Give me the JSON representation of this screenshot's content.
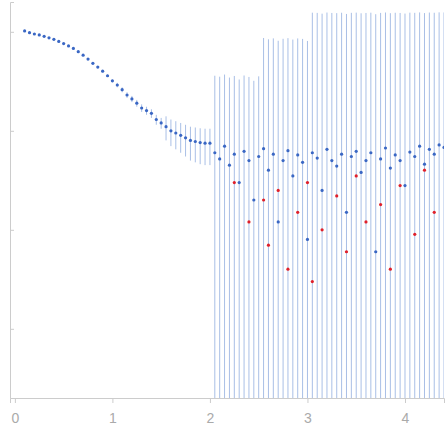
{
  "chart_data": {
    "type": "scatter",
    "log": "y",
    "tick_labels": "x",
    "grid": false,
    "xlim": [
      -0.05,
      4.4
    ],
    "xticks": [
      0,
      1,
      2,
      3,
      4
    ],
    "ylim": [
      0.0002,
      2
    ],
    "yticks": [
      0.001,
      0.01,
      0.1,
      1
    ],
    "series": [
      {
        "color": "#3a67c4",
        "marker": "circle",
        "x": [
          0.1,
          0.15,
          0.2,
          0.25,
          0.3,
          0.35,
          0.4,
          0.45,
          0.5,
          0.55,
          0.6,
          0.65,
          0.7,
          0.75,
          0.8,
          0.85,
          0.9,
          0.95,
          1.0,
          1.05,
          1.1,
          1.15,
          1.2,
          1.25,
          1.3,
          1.35,
          1.4,
          1.45,
          1.5,
          1.55,
          1.6,
          1.65,
          1.7,
          1.75,
          1.8,
          1.85,
          1.9,
          1.95,
          2.0,
          2.05,
          2.1,
          2.15,
          2.2,
          2.25,
          2.3,
          2.35,
          2.4,
          2.45,
          2.5,
          2.55,
          2.6,
          2.65,
          2.7,
          2.75,
          2.8,
          2.85,
          2.9,
          2.95,
          3.0,
          3.05,
          3.1,
          3.15,
          3.2,
          3.25,
          3.3,
          3.35,
          3.4,
          3.45,
          3.5,
          3.55,
          3.6,
          3.65,
          3.7,
          3.75,
          3.8,
          3.85,
          3.9,
          3.95,
          4.0,
          4.05,
          4.1,
          4.15,
          4.2,
          4.25,
          4.3,
          4.35,
          4.4
        ],
        "values": [
          1.02,
          0.98,
          0.95,
          0.93,
          0.9,
          0.87,
          0.84,
          0.8,
          0.76,
          0.72,
          0.68,
          0.63,
          0.58,
          0.53,
          0.48,
          0.44,
          0.4,
          0.36,
          0.32,
          0.29,
          0.26,
          0.23,
          0.21,
          0.19,
          0.17,
          0.16,
          0.15,
          0.13,
          0.12,
          0.11,
          0.1,
          0.095,
          0.09,
          0.085,
          0.08,
          0.078,
          0.076,
          0.075,
          0.075,
          0.06,
          0.052,
          0.07,
          0.045,
          0.058,
          0.03,
          0.062,
          0.05,
          0.02,
          0.055,
          0.066,
          0.04,
          0.058,
          0.012,
          0.05,
          0.063,
          0.035,
          0.057,
          0.048,
          0.008,
          0.06,
          0.053,
          0.025,
          0.065,
          0.05,
          0.044,
          0.058,
          0.015,
          0.055,
          0.062,
          0.038,
          0.05,
          0.06,
          0.006,
          0.052,
          0.067,
          0.042,
          0.057,
          0.05,
          0.028,
          0.061,
          0.055,
          0.07,
          0.046,
          0.065,
          0.058,
          0.072,
          0.068
        ],
        "errors": [
          0.01,
          0.01,
          0.01,
          0.01,
          0.01,
          0.01,
          0.01,
          0.01,
          0.01,
          0.01,
          0.01,
          0.01,
          0.01,
          0.01,
          0.01,
          0.01,
          0.01,
          0.01,
          0.01,
          0.015,
          0.015,
          0.015,
          0.015,
          0.015,
          0.015,
          0.015,
          0.015,
          0.015,
          0.015,
          0.03,
          0.03,
          0.03,
          0.03,
          0.03,
          0.03,
          0.03,
          0.03,
          0.03,
          0.03,
          0.3,
          0.3,
          0.3,
          0.3,
          0.3,
          0.3,
          0.3,
          0.3,
          0.3,
          0.3,
          0.8,
          0.8,
          0.8,
          0.8,
          0.8,
          0.8,
          0.8,
          0.8,
          0.8,
          0.8,
          1.5,
          1.5,
          1.5,
          1.5,
          1.5,
          1.5,
          1.5,
          1.5,
          1.5,
          1.5,
          1.5,
          1.5,
          1.5,
          1.5,
          1.5,
          1.5,
          1.5,
          1.5,
          1.5,
          1.5,
          1.5,
          1.5,
          1.5,
          1.5,
          1.5,
          1.5,
          1.5,
          1.5
        ]
      },
      {
        "color": "#e0202a",
        "marker": "circle",
        "x": [
          2.25,
          2.4,
          2.55,
          2.6,
          2.7,
          2.8,
          2.9,
          3.0,
          3.05,
          3.15,
          3.3,
          3.4,
          3.5,
          3.6,
          3.75,
          3.85,
          3.95,
          4.1,
          4.2,
          4.3
        ],
        "values": [
          0.03,
          0.012,
          0.02,
          0.007,
          0.025,
          0.004,
          0.015,
          0.03,
          0.003,
          0.01,
          0.022,
          0.006,
          0.035,
          0.012,
          0.018,
          0.004,
          0.028,
          0.009,
          0.04,
          0.015
        ]
      }
    ]
  }
}
